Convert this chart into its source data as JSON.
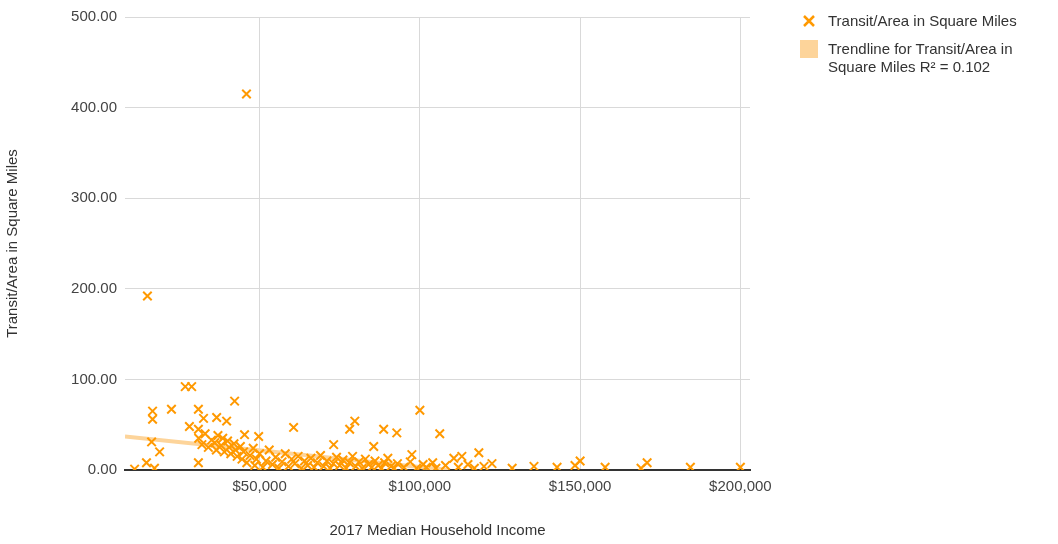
{
  "chart_data": {
    "type": "scatter",
    "xlabel": "2017 Median Household Income",
    "ylabel": "Transit/Area in Square Miles",
    "xlim": [
      8000,
      203000
    ],
    "xticks": [
      {
        "value": 50000,
        "label": "$50,000"
      },
      {
        "value": 100000,
        "label": "$100,000"
      },
      {
        "value": 150000,
        "label": "$150,000"
      },
      {
        "value": 200000,
        "label": "$200,000"
      }
    ],
    "ylim": [
      0,
      500
    ],
    "yticks": [
      {
        "value": 0,
        "label": "0.00"
      },
      {
        "value": 100,
        "label": "100.00"
      },
      {
        "value": 200,
        "label": "200.00"
      },
      {
        "value": 300,
        "label": "300.00"
      },
      {
        "value": 400,
        "label": "400.00"
      },
      {
        "value": 500,
        "label": "500.00"
      }
    ],
    "grid": true,
    "legend": "right",
    "marker": "cross",
    "series": [
      {
        "name": "Transit/Area in Square Miles",
        "color": "#ff9900",
        "x": [
          45900,
          15000,
          26800,
          28800,
          16600,
          16600,
          22500,
          42200,
          30900,
          32500,
          36600,
          39700,
          28100,
          30900,
          16300,
          18800,
          14700,
          11000,
          17200,
          30900,
          49700,
          45300,
          60600,
          79700,
          78100,
          88700,
          92800,
          100000,
          106200,
          85600,
          73100,
          97500,
          118400,
          113100,
          110600,
          122500,
          128800,
          135600,
          142800,
          150000,
          148400,
          157800,
          170900,
          184400,
          200000,
          169000,
          31000,
          32000,
          33000,
          34000,
          35000,
          36000,
          36500,
          37000,
          38000,
          38500,
          39000,
          40000,
          40500,
          41000,
          42000,
          42500,
          43000,
          44000,
          44500,
          45000,
          46000,
          47000,
          48000,
          48500,
          49000,
          50000,
          51000,
          52000,
          53000,
          54000,
          55000,
          56000,
          57000,
          58000,
          59000,
          60000,
          61000,
          62000,
          63000,
          64000,
          65000,
          66000,
          67000,
          68000,
          69000,
          70000,
          71000,
          72000,
          73000,
          74000,
          75000,
          76000,
          77000,
          78000,
          79000,
          80000,
          81000,
          82000,
          83000,
          84000,
          85000,
          86000,
          87000,
          88000,
          89000,
          90000,
          91000,
          92000,
          93000,
          95000,
          97000,
          99000,
          101000,
          102000,
          104000,
          105000,
          108000,
          112000,
          115000,
          117000,
          120000
        ],
        "values": [
          415,
          192,
          92,
          92,
          65,
          56,
          67,
          76,
          67,
          57,
          58,
          54,
          48,
          45,
          31,
          20,
          8,
          1,
          2,
          8,
          37,
          39,
          47,
          54,
          45,
          45,
          41,
          66,
          40,
          26,
          28,
          17,
          19,
          15,
          13,
          7,
          2,
          4,
          3,
          10,
          5,
          3,
          8,
          3,
          3,
          2,
          35,
          28,
          40,
          25,
          33,
          30,
          22,
          38,
          27,
          35,
          20,
          32,
          25,
          18,
          29,
          22,
          15,
          26,
          12,
          20,
          8,
          16,
          24,
          5,
          12,
          18,
          3,
          10,
          22,
          6,
          14,
          2,
          9,
          18,
          4,
          12,
          7,
          15,
          2,
          10,
          5,
          13,
          3,
          8,
          16,
          4,
          10,
          2,
          7,
          14,
          5,
          11,
          2,
          8,
          15,
          4,
          9,
          2,
          12,
          6,
          3,
          10,
          5,
          2,
          8,
          13,
          4,
          2,
          7,
          3,
          9,
          2,
          6,
          3,
          8,
          2,
          5,
          3,
          6,
          2,
          4
        ]
      },
      {
        "name": "Trendline for Transit/Area in Square Miles R² = 0.102",
        "type": "line",
        "marker": "none",
        "color": "#fdd49a",
        "x": [
          8000,
          109000
        ],
        "values": [
          37,
          0
        ]
      }
    ]
  }
}
